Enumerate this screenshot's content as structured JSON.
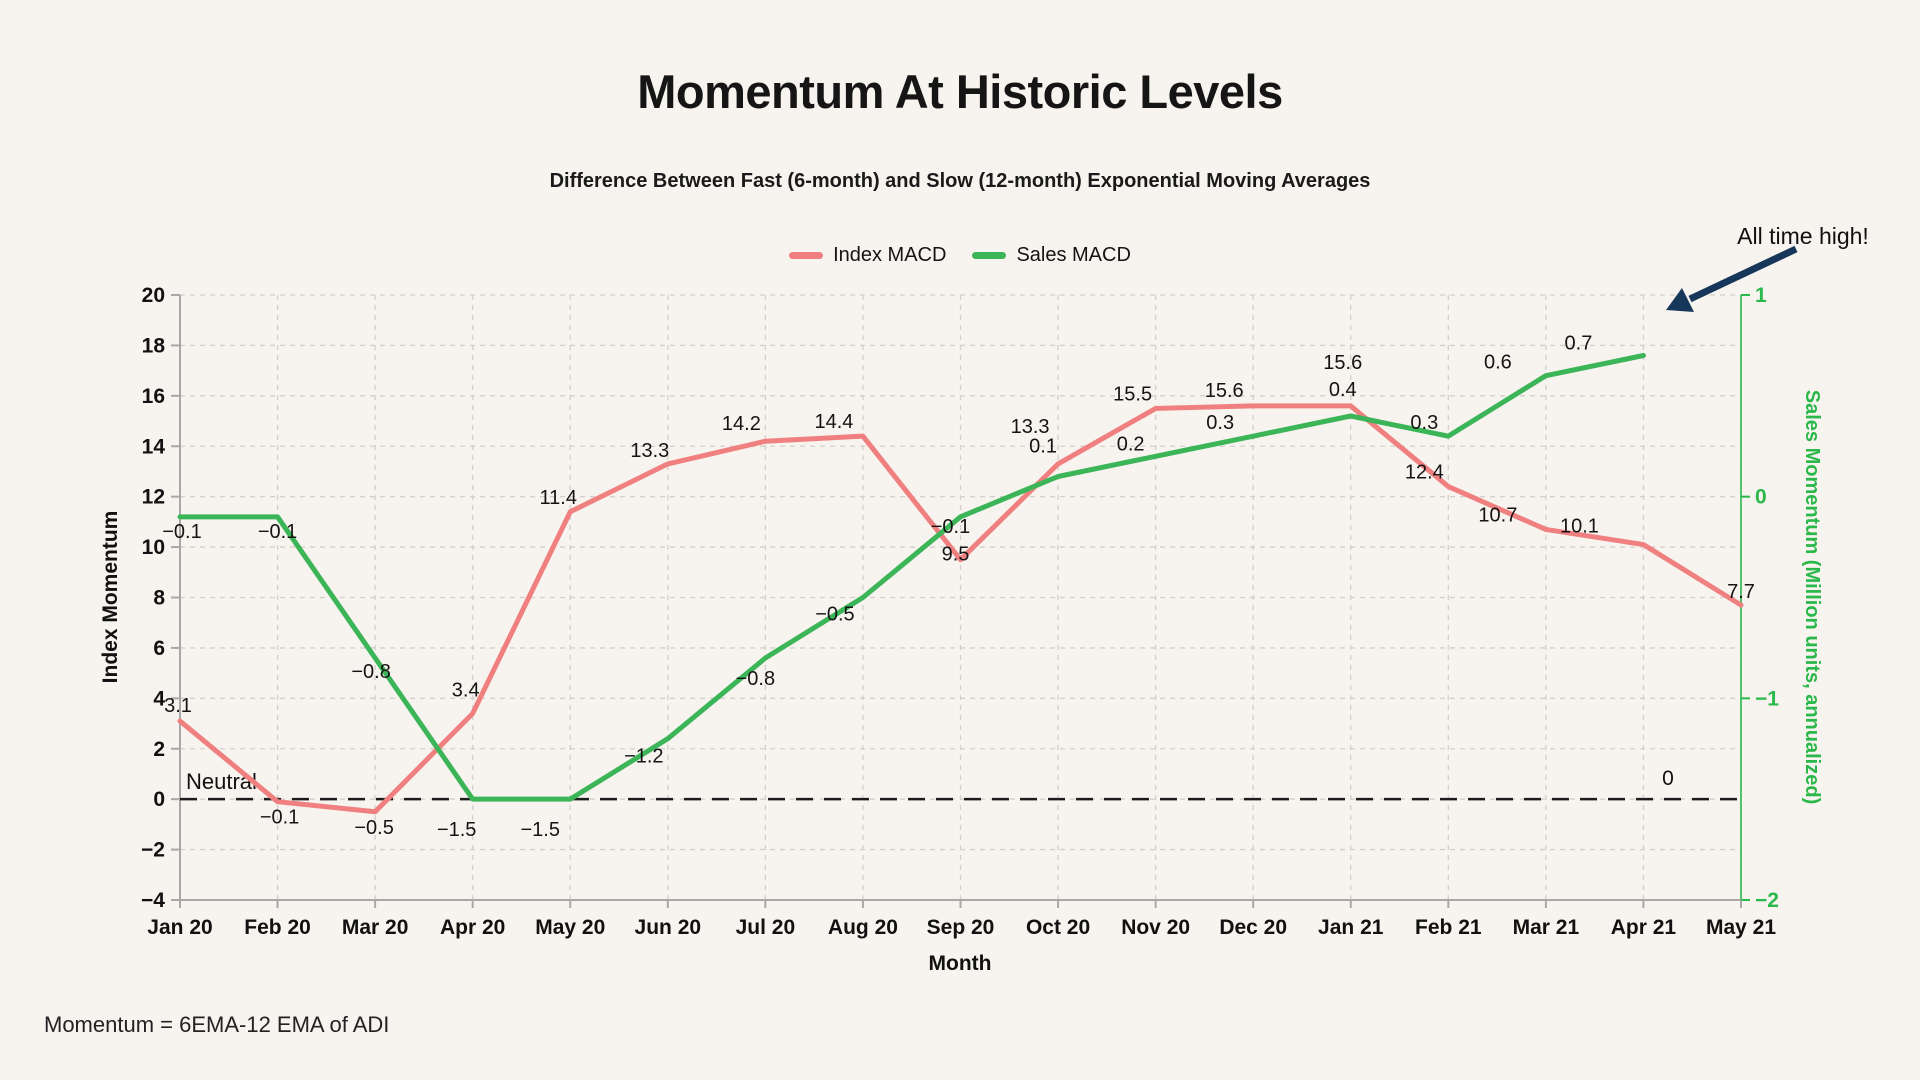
{
  "page": {
    "background_color": "#f7f3ee",
    "footer_note": "Momentum = 6EMA-12 EMA of ADI"
  },
  "chart_data": {
    "type": "line",
    "title": "Momentum At Historic Levels",
    "subtitle": "Difference Between Fast (6-month) and Slow (12-month) Exponential Moving Averages",
    "categories": [
      "Jan 20",
      "Feb 20",
      "Mar 20",
      "Apr 20",
      "May 20",
      "Jun 20",
      "Jul 20",
      "Aug 20",
      "Sep 20",
      "Oct 20",
      "Nov 20",
      "Dec 20",
      "Jan 21",
      "Feb 21",
      "Mar 21",
      "Apr 21",
      "May 21"
    ],
    "xlabel": "Month",
    "grid": true,
    "legend_position": "top-center",
    "axes": {
      "left": {
        "label": "Index Momentum",
        "min": -4,
        "max": 20,
        "tick_step": 2,
        "text_color": "#111111",
        "spine_color": "#a8a8a8"
      },
      "right": {
        "label": "Sales Momentum (Million units, annualized)",
        "min": -2,
        "max": 1,
        "tick_step": 1,
        "text_color": "#2bb84a",
        "spine_color": "#2bb84a"
      }
    },
    "series": [
      {
        "name": "Index MACD",
        "axis": "left",
        "color": "#f08080",
        "values": [
          3.1,
          -0.1,
          -0.5,
          3.4,
          11.4,
          13.3,
          14.2,
          14.4,
          9.5,
          13.3,
          15.5,
          15.6,
          15.6,
          12.4,
          10.7,
          10.1,
          7.7
        ]
      },
      {
        "name": "Sales MACD",
        "axis": "right",
        "color": "#3cb558",
        "values": [
          -0.1,
          -0.1,
          -0.8,
          -1.5,
          -1.5,
          -1.2,
          -0.8,
          -0.5,
          -0.1,
          0.1,
          0.2,
          0.3,
          0.4,
          0.3,
          0.6,
          0.7
        ]
      }
    ],
    "reference_line": {
      "axis": "left",
      "value": 0,
      "style": "dashed",
      "color": "#1c1c1c",
      "left_label": "Neutral",
      "right_label": "0"
    },
    "annotation": {
      "text": "All time high!",
      "arrow_color": "#16375a",
      "points_to": "Apr 21 Sales MACD (0.7)"
    }
  }
}
